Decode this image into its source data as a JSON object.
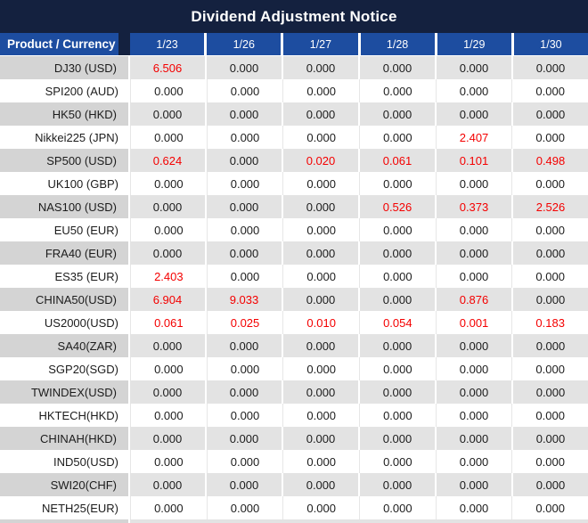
{
  "title": "Dividend Adjustment Notice",
  "table": {
    "product_header": "Product / Currency",
    "date_headers": [
      "1/23",
      "1/26",
      "1/27",
      "1/28",
      "1/29",
      "1/30"
    ],
    "rows": [
      {
        "product": "DJ30 (USD)",
        "values": [
          "6.506",
          "0.000",
          "0.000",
          "0.000",
          "0.000",
          "0.000"
        ]
      },
      {
        "product": "SPI200 (AUD)",
        "values": [
          "0.000",
          "0.000",
          "0.000",
          "0.000",
          "0.000",
          "0.000"
        ]
      },
      {
        "product": "HK50 (HKD)",
        "values": [
          "0.000",
          "0.000",
          "0.000",
          "0.000",
          "0.000",
          "0.000"
        ]
      },
      {
        "product": "Nikkei225 (JPN)",
        "values": [
          "0.000",
          "0.000",
          "0.000",
          "0.000",
          "2.407",
          "0.000"
        ]
      },
      {
        "product": "SP500 (USD)",
        "values": [
          "0.624",
          "0.000",
          "0.020",
          "0.061",
          "0.101",
          "0.498"
        ]
      },
      {
        "product": "UK100 (GBP)",
        "values": [
          "0.000",
          "0.000",
          "0.000",
          "0.000",
          "0.000",
          "0.000"
        ]
      },
      {
        "product": "NAS100 (USD)",
        "values": [
          "0.000",
          "0.000",
          "0.000",
          "0.526",
          "0.373",
          "2.526"
        ]
      },
      {
        "product": "EU50 (EUR)",
        "values": [
          "0.000",
          "0.000",
          "0.000",
          "0.000",
          "0.000",
          "0.000"
        ]
      },
      {
        "product": "FRA40 (EUR)",
        "values": [
          "0.000",
          "0.000",
          "0.000",
          "0.000",
          "0.000",
          "0.000"
        ]
      },
      {
        "product": "ES35 (EUR)",
        "values": [
          "2.403",
          "0.000",
          "0.000",
          "0.000",
          "0.000",
          "0.000"
        ]
      },
      {
        "product": "CHINA50(USD)",
        "values": [
          "6.904",
          "9.033",
          "0.000",
          "0.000",
          "0.876",
          "0.000"
        ]
      },
      {
        "product": "US2000(USD)",
        "values": [
          "0.061",
          "0.025",
          "0.010",
          "0.054",
          "0.001",
          "0.183"
        ]
      },
      {
        "product": "SA40(ZAR)",
        "values": [
          "0.000",
          "0.000",
          "0.000",
          "0.000",
          "0.000",
          "0.000"
        ]
      },
      {
        "product": "SGP20(SGD)",
        "values": [
          "0.000",
          "0.000",
          "0.000",
          "0.000",
          "0.000",
          "0.000"
        ]
      },
      {
        "product": "TWINDEX(USD)",
        "values": [
          "0.000",
          "0.000",
          "0.000",
          "0.000",
          "0.000",
          "0.000"
        ]
      },
      {
        "product": "HKTECH(HKD)",
        "values": [
          "0.000",
          "0.000",
          "0.000",
          "0.000",
          "0.000",
          "0.000"
        ]
      },
      {
        "product": "CHINAH(HKD)",
        "values": [
          "0.000",
          "0.000",
          "0.000",
          "0.000",
          "0.000",
          "0.000"
        ]
      },
      {
        "product": "IND50(USD)",
        "values": [
          "0.000",
          "0.000",
          "0.000",
          "0.000",
          "0.000",
          "0.000"
        ]
      },
      {
        "product": "SWI20(CHF)",
        "values": [
          "0.000",
          "0.000",
          "0.000",
          "0.000",
          "0.000",
          "0.000"
        ]
      },
      {
        "product": "NETH25(EUR)",
        "values": [
          "0.000",
          "0.000",
          "0.000",
          "0.000",
          "0.000",
          "0.000"
        ]
      }
    ]
  },
  "colors": {
    "title_bg": "#14213f",
    "header_bg": "#1d4da0",
    "header_text": "#ffffff",
    "row_gray_product": "#d4d4d4",
    "row_gray_value": "#e3e3e3",
    "row_white": "#ffffff",
    "value_red": "#f40000",
    "text_dark": "#1c1c1c"
  }
}
